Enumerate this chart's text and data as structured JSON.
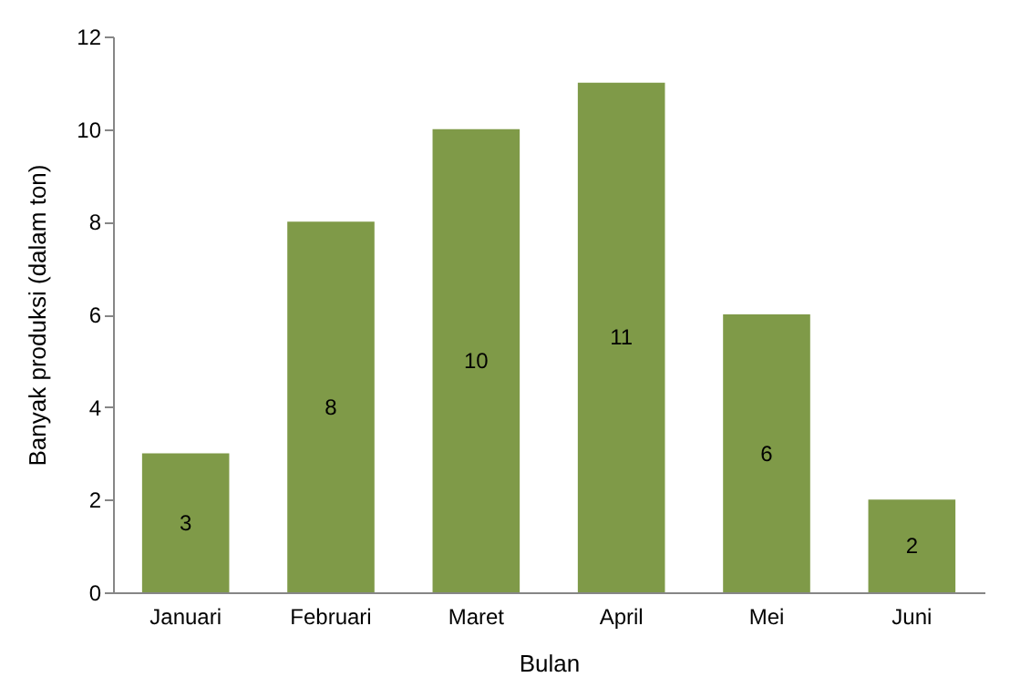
{
  "chart_data": {
    "type": "bar",
    "xlabel": "Bulan",
    "ylabel": "Banyak produksi  (dalam ton)",
    "categories": [
      "Januari",
      "Februari",
      "Maret",
      "April",
      "Mei",
      "Juni"
    ],
    "values": [
      3,
      8,
      10,
      11,
      6,
      2
    ],
    "color": "#7f9a48",
    "ylim": [
      0,
      12
    ],
    "yticks": [
      0,
      2,
      4,
      6,
      8,
      10,
      12
    ],
    "grid": false,
    "data_labels": true
  }
}
